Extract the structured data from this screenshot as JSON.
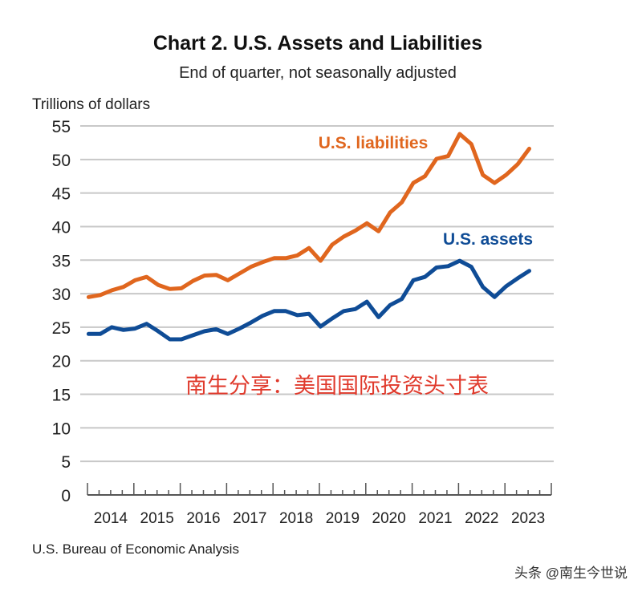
{
  "chart_data": {
    "type": "line",
    "title": "Chart 2. U.S. Assets and Liabilities",
    "subtitle": "End of quarter, not seasonally adjusted",
    "ylabel": "Trillions of dollars",
    "xlabel": "",
    "ylim": [
      0,
      55
    ],
    "yticks": [
      0,
      5,
      10,
      15,
      20,
      25,
      30,
      35,
      40,
      45,
      50,
      55
    ],
    "xlim_quarters": [
      2014,
      2024
    ],
    "year_labels": [
      "2014",
      "2015",
      "2016",
      "2017",
      "2018",
      "2019",
      "2020",
      "2021",
      "2022",
      "2023"
    ],
    "grid": true,
    "x_start": "2014 Q1",
    "x_end": "2023 Q3",
    "series": [
      {
        "name": "U.S. liabilities",
        "color": "#E0661E",
        "values": [
          29.5,
          29.8,
          30.5,
          31,
          32,
          32.5,
          31.3,
          30.7,
          30.8,
          31.9,
          32.7,
          32.8,
          32,
          33,
          34,
          34.7,
          35.3,
          35.3,
          35.7,
          36.8,
          34.9,
          37.3,
          38.5,
          39.4,
          40.5,
          39.3,
          42.1,
          43.6,
          46.5,
          47.5,
          50.1,
          50.5,
          53.8,
          52.3,
          47.7,
          46.5,
          47.7,
          49.3,
          51.6
        ]
      },
      {
        "name": "U.S. assets",
        "color": "#0F4C96",
        "values": [
          24,
          24,
          25,
          24.6,
          24.8,
          25.5,
          24.4,
          23.2,
          23.2,
          23.8,
          24.4,
          24.7,
          24,
          24.8,
          25.7,
          26.7,
          27.4,
          27.4,
          26.8,
          27,
          25.1,
          26.3,
          27.4,
          27.7,
          28.8,
          26.5,
          28.3,
          29.2,
          32,
          32.5,
          33.9,
          34.1,
          34.9,
          34,
          31,
          29.5,
          31.1,
          32.3,
          33.4
        ]
      }
    ],
    "source": "U.S. Bureau of Economic Analysis"
  },
  "overlay_caption": "南生分享：美国国际投资头寸表",
  "watermark": "头条 @南生今世说"
}
